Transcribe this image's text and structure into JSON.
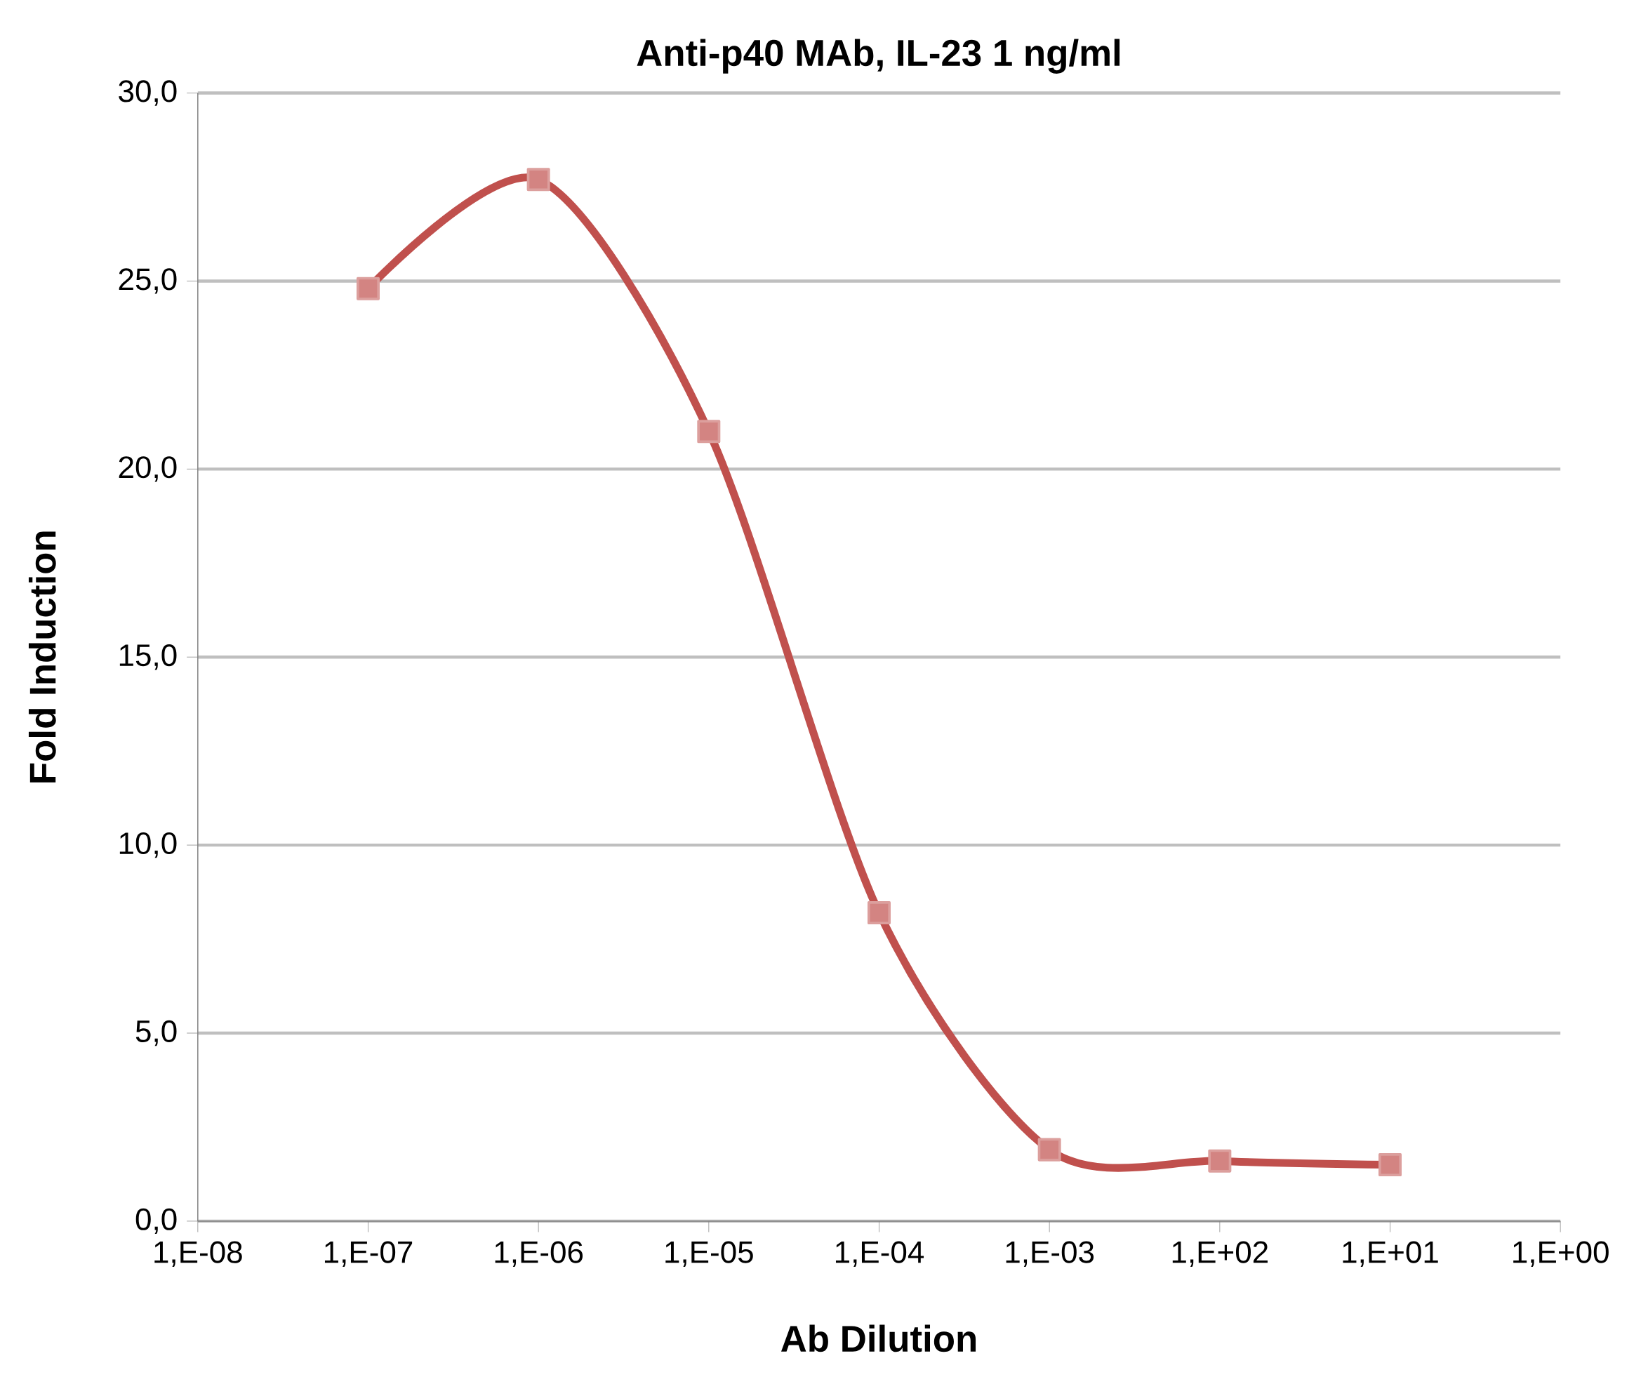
{
  "chart_data": {
    "type": "line",
    "title": "Anti-p40 MAb, IL-23 1 ng/ml",
    "xlabel": "Ab Dilution",
    "ylabel": "Fold Induction",
    "categories": [
      "1,E-08",
      "1,E-07",
      "1,E-06",
      "1,E-05",
      "1,E-04",
      "1,E-03",
      "1,E+02",
      "1,E+01",
      "1,E+00"
    ],
    "series": [
      {
        "color": "#c0504d",
        "values": [
          null,
          24.8,
          27.7,
          21.0,
          8.2,
          1.9,
          1.6,
          1.5,
          null
        ]
      }
    ],
    "ylim": [
      0,
      30
    ],
    "yticks": [
      {
        "value": 0,
        "label": "0,0"
      },
      {
        "value": 5,
        "label": "5,0"
      },
      {
        "value": 10,
        "label": "10,0"
      },
      {
        "value": 15,
        "label": "15,0"
      },
      {
        "value": 20,
        "label": "20,0"
      },
      {
        "value": 25,
        "label": "25,0"
      },
      {
        "value": 30,
        "label": "30,0"
      }
    ],
    "grid": "y",
    "marker": "square",
    "line_style": "solid"
  }
}
